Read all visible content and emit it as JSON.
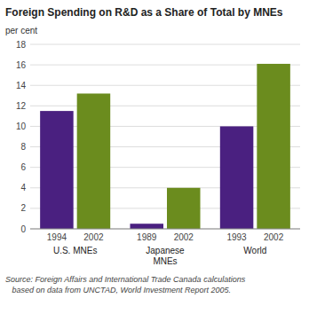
{
  "chart_data": {
    "type": "bar",
    "title": "Foreign Spending on R&D as a Share of Total by MNEs",
    "ylabel": "per cent",
    "source": "Source: Foreign Affairs and International Trade Canada calculations\n   based on data from UNCTAD, World Investment Report 2005.",
    "categories": [
      "U.S. MNEs",
      "Japanese\nMNEs",
      "World"
    ],
    "series": [
      {
        "color": "#4a2080",
        "values": [
          11.5,
          0.5,
          10.0
        ],
        "bar_labels": [
          "1994",
          "1989",
          "1993"
        ]
      },
      {
        "color": "#6b8c1e",
        "values": [
          13.2,
          4.0,
          16.1
        ],
        "bar_labels": [
          "2002",
          "2002",
          "2002"
        ]
      }
    ],
    "ylim": [
      0,
      18
    ],
    "yticks": [
      0,
      2,
      4,
      6,
      8,
      10,
      12,
      14,
      16,
      18
    ],
    "grid": true
  }
}
